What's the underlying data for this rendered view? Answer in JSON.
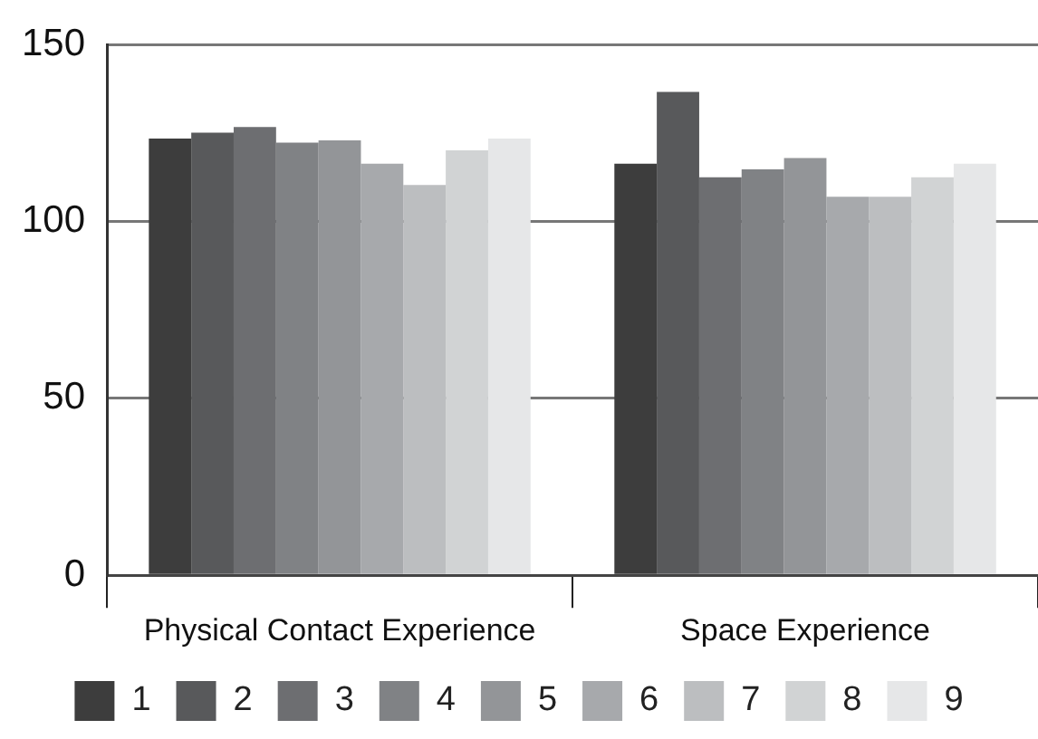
{
  "chart_data": {
    "type": "bar",
    "categories": [
      "Physical Contact Experience",
      "Space Experience"
    ],
    "series": [
      {
        "name": "1",
        "color": "#3d3d3d",
        "values": [
          123.4,
          116.3
        ]
      },
      {
        "name": "2",
        "color": "#58595b",
        "values": [
          125.1,
          136.6
        ]
      },
      {
        "name": "3",
        "color": "#6d6e71",
        "values": [
          126.7,
          112.5
        ]
      },
      {
        "name": "4",
        "color": "#808285",
        "values": [
          122.3,
          114.7
        ]
      },
      {
        "name": "5",
        "color": "#939598",
        "values": [
          122.9,
          117.9
        ]
      },
      {
        "name": "6",
        "color": "#a7a9ac",
        "values": [
          116.3,
          107.0
        ]
      },
      {
        "name": "7",
        "color": "#bcbec0",
        "values": [
          110.3,
          107.0
        ]
      },
      {
        "name": "8",
        "color": "#d1d3d4",
        "values": [
          120.1,
          112.5
        ]
      },
      {
        "name": "9",
        "color": "#e6e7e8",
        "values": [
          123.4,
          116.3
        ]
      }
    ],
    "ylim": [
      0,
      150
    ],
    "yticks": [
      0,
      50,
      100,
      150
    ],
    "grid": "y",
    "legend": "bottom"
  }
}
